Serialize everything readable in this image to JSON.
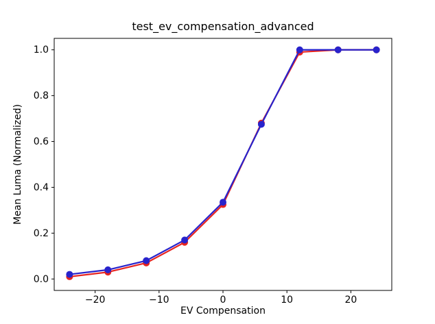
{
  "figure": {
    "background_color": "#ffffff",
    "frame_color": "#000000",
    "text_color": "#000000"
  },
  "chart_data": {
    "type": "line",
    "title": "test_ev_compensation_advanced",
    "xlabel": "EV Compensation",
    "ylabel": "Mean Luma (Normalized)",
    "x": [
      -24,
      -18,
      -12,
      -6,
      0,
      6,
      12,
      18,
      24
    ],
    "series": [
      {
        "name": "red-series",
        "color": "#e62420",
        "marker": "circle",
        "values": [
          0.01,
          0.03,
          0.07,
          0.16,
          0.325,
          0.68,
          0.99,
          1.0,
          1.0
        ]
      },
      {
        "name": "blue-series",
        "color": "#2823cc",
        "marker": "circle",
        "values": [
          0.02,
          0.04,
          0.08,
          0.17,
          0.335,
          0.675,
          1.0,
          1.0,
          1.0
        ]
      }
    ],
    "xlim": [
      -26.4,
      26.4
    ],
    "ylim": [
      -0.05,
      1.05
    ],
    "xticks": [
      -20,
      -10,
      0,
      10,
      20
    ],
    "xtick_labels": [
      "−20",
      "−10",
      "0",
      "10",
      "20"
    ],
    "yticks": [
      0.0,
      0.2,
      0.4,
      0.6,
      0.8,
      1.0
    ],
    "ytick_labels": [
      "0.0",
      "0.2",
      "0.4",
      "0.6",
      "0.8",
      "1.0"
    ],
    "grid": false,
    "legend": null
  }
}
